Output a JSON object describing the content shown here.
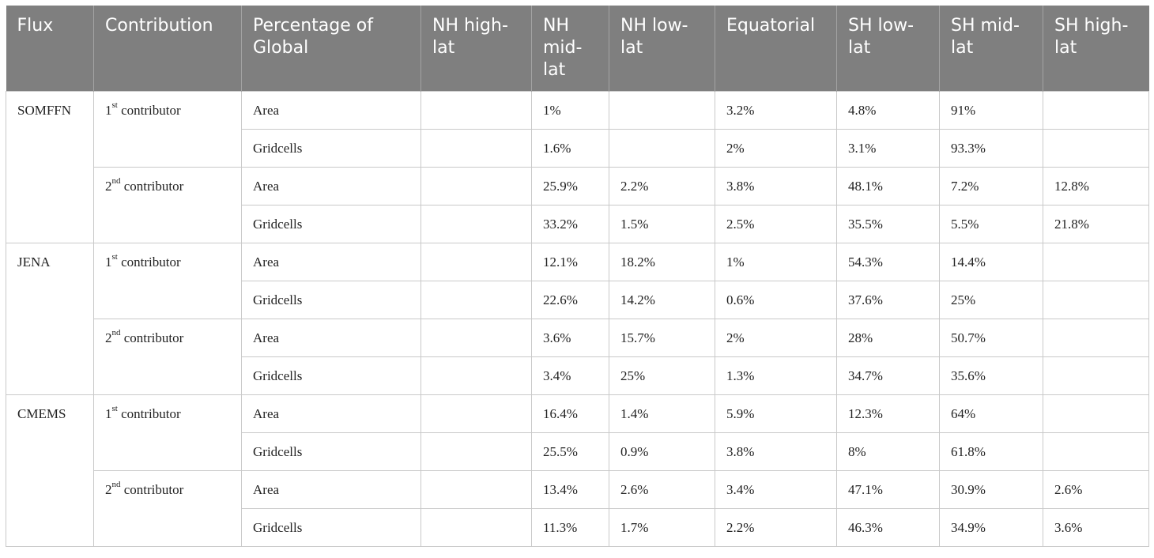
{
  "headers": [
    "Flux",
    "Contribution",
    "Percentage of Global",
    "NH high-lat",
    "NH mid-lat",
    "NH low-lat",
    "Equatorial",
    "SH low-lat",
    "SH mid-lat",
    "SH high-lat"
  ],
  "fluxes": [
    {
      "name": "SOMFFN",
      "contributors": [
        {
          "ordinal": "1",
          "suffix": "st",
          "label": " contributor",
          "rows": [
            {
              "metric": "Area",
              "values": [
                "",
                "1%",
                "",
                "3.2%",
                "4.8%",
                "91%",
                ""
              ]
            },
            {
              "metric": "Gridcells",
              "values": [
                "",
                "1.6%",
                "",
                "2%",
                "3.1%",
                "93.3%",
                ""
              ]
            }
          ]
        },
        {
          "ordinal": "2",
          "suffix": "nd",
          "label": " contributor",
          "rows": [
            {
              "metric": "Area",
              "values": [
                "",
                "25.9%",
                "2.2%",
                "3.8%",
                "48.1%",
                "7.2%",
                "12.8%"
              ]
            },
            {
              "metric": "Gridcells",
              "values": [
                "",
                "33.2%",
                "1.5%",
                "2.5%",
                "35.5%",
                "5.5%",
                "21.8%"
              ]
            }
          ]
        }
      ]
    },
    {
      "name": "JENA",
      "contributors": [
        {
          "ordinal": "1",
          "suffix": "st",
          "label": " contributor",
          "rows": [
            {
              "metric": "Area",
              "values": [
                "",
                "12.1%",
                "18.2%",
                "1%",
                "54.3%",
                "14.4%",
                ""
              ]
            },
            {
              "metric": "Gridcells",
              "values": [
                "",
                "22.6%",
                "14.2%",
                "0.6%",
                "37.6%",
                "25%",
                ""
              ]
            }
          ]
        },
        {
          "ordinal": "2",
          "suffix": "nd",
          "label": " contributor",
          "rows": [
            {
              "metric": "Area",
              "values": [
                "",
                "3.6%",
                "15.7%",
                "2%",
                "28%",
                "50.7%",
                ""
              ]
            },
            {
              "metric": "Gridcells",
              "values": [
                "",
                "3.4%",
                "25%",
                "1.3%",
                "34.7%",
                "35.6%",
                ""
              ]
            }
          ]
        }
      ]
    },
    {
      "name": "CMEMS",
      "contributors": [
        {
          "ordinal": "1",
          "suffix": "st",
          "label": " contributor",
          "rows": [
            {
              "metric": "Area",
              "values": [
                "",
                "16.4%",
                "1.4%",
                "5.9%",
                "12.3%",
                "64%",
                ""
              ]
            },
            {
              "metric": "Gridcells",
              "values": [
                "",
                "25.5%",
                "0.9%",
                "3.8%",
                "8%",
                "61.8%",
                ""
              ]
            }
          ]
        },
        {
          "ordinal": "2",
          "suffix": "nd",
          "label": " contributor",
          "rows": [
            {
              "metric": "Area",
              "values": [
                "",
                "13.4%",
                "2.6%",
                "3.4%",
                "47.1%",
                "30.9%",
                "2.6%"
              ]
            },
            {
              "metric": "Gridcells",
              "values": [
                "",
                "11.3%",
                "1.7%",
                "2.2%",
                "46.3%",
                "34.9%",
                "3.6%"
              ]
            }
          ]
        }
      ]
    }
  ]
}
